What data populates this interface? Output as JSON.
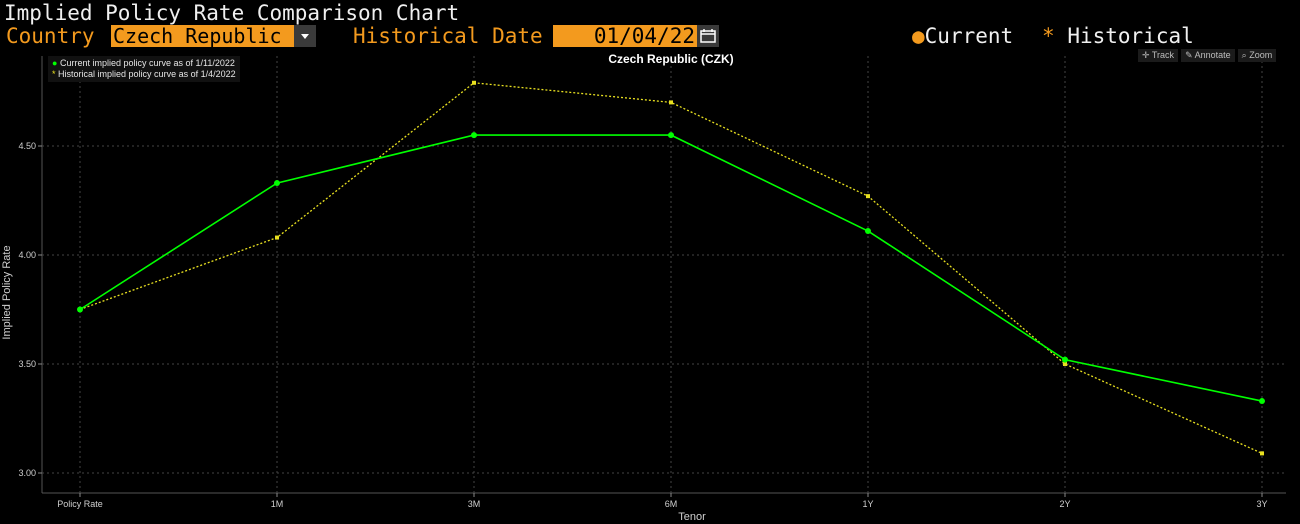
{
  "header": {
    "title": "Implied Policy Rate Comparison Chart",
    "country_label": "Country",
    "country_value": "Czech Republic",
    "historical_date_label": "Historical Date",
    "historical_date_value": "01/04/22",
    "legend_current": "Current",
    "legend_historical": "Historical"
  },
  "toolbar": {
    "track": "Track",
    "annotate": "Annotate",
    "zoom": "Zoom"
  },
  "legend": {
    "current": "Current implied policy curve as of 1/11/2022",
    "historical": "Historical implied policy curve as of 1/4/2022"
  },
  "colors": {
    "current": "#00ff00",
    "historical": "#e8e020",
    "accent": "#f39a1e"
  },
  "chart_data": {
    "type": "line",
    "title": "Czech Republic (CZK)",
    "xlabel": "Tenor",
    "ylabel": "Implied Policy Rate",
    "categories": [
      "Policy Rate",
      "1M",
      "3M",
      "6M",
      "1Y",
      "2Y",
      "3Y"
    ],
    "ylim": [
      2.95,
      4.85
    ],
    "yticks": [
      "3.00",
      "3.50",
      "4.00",
      "4.50"
    ],
    "grid": true,
    "series": [
      {
        "name": "Current implied policy curve as of 1/11/2022",
        "values": [
          3.75,
          4.33,
          4.55,
          4.55,
          4.11,
          3.52,
          3.33
        ]
      },
      {
        "name": "Historical implied policy curve as of 1/4/2022",
        "values": [
          3.75,
          4.08,
          4.79,
          4.7,
          4.27,
          3.5,
          3.09
        ]
      }
    ]
  }
}
